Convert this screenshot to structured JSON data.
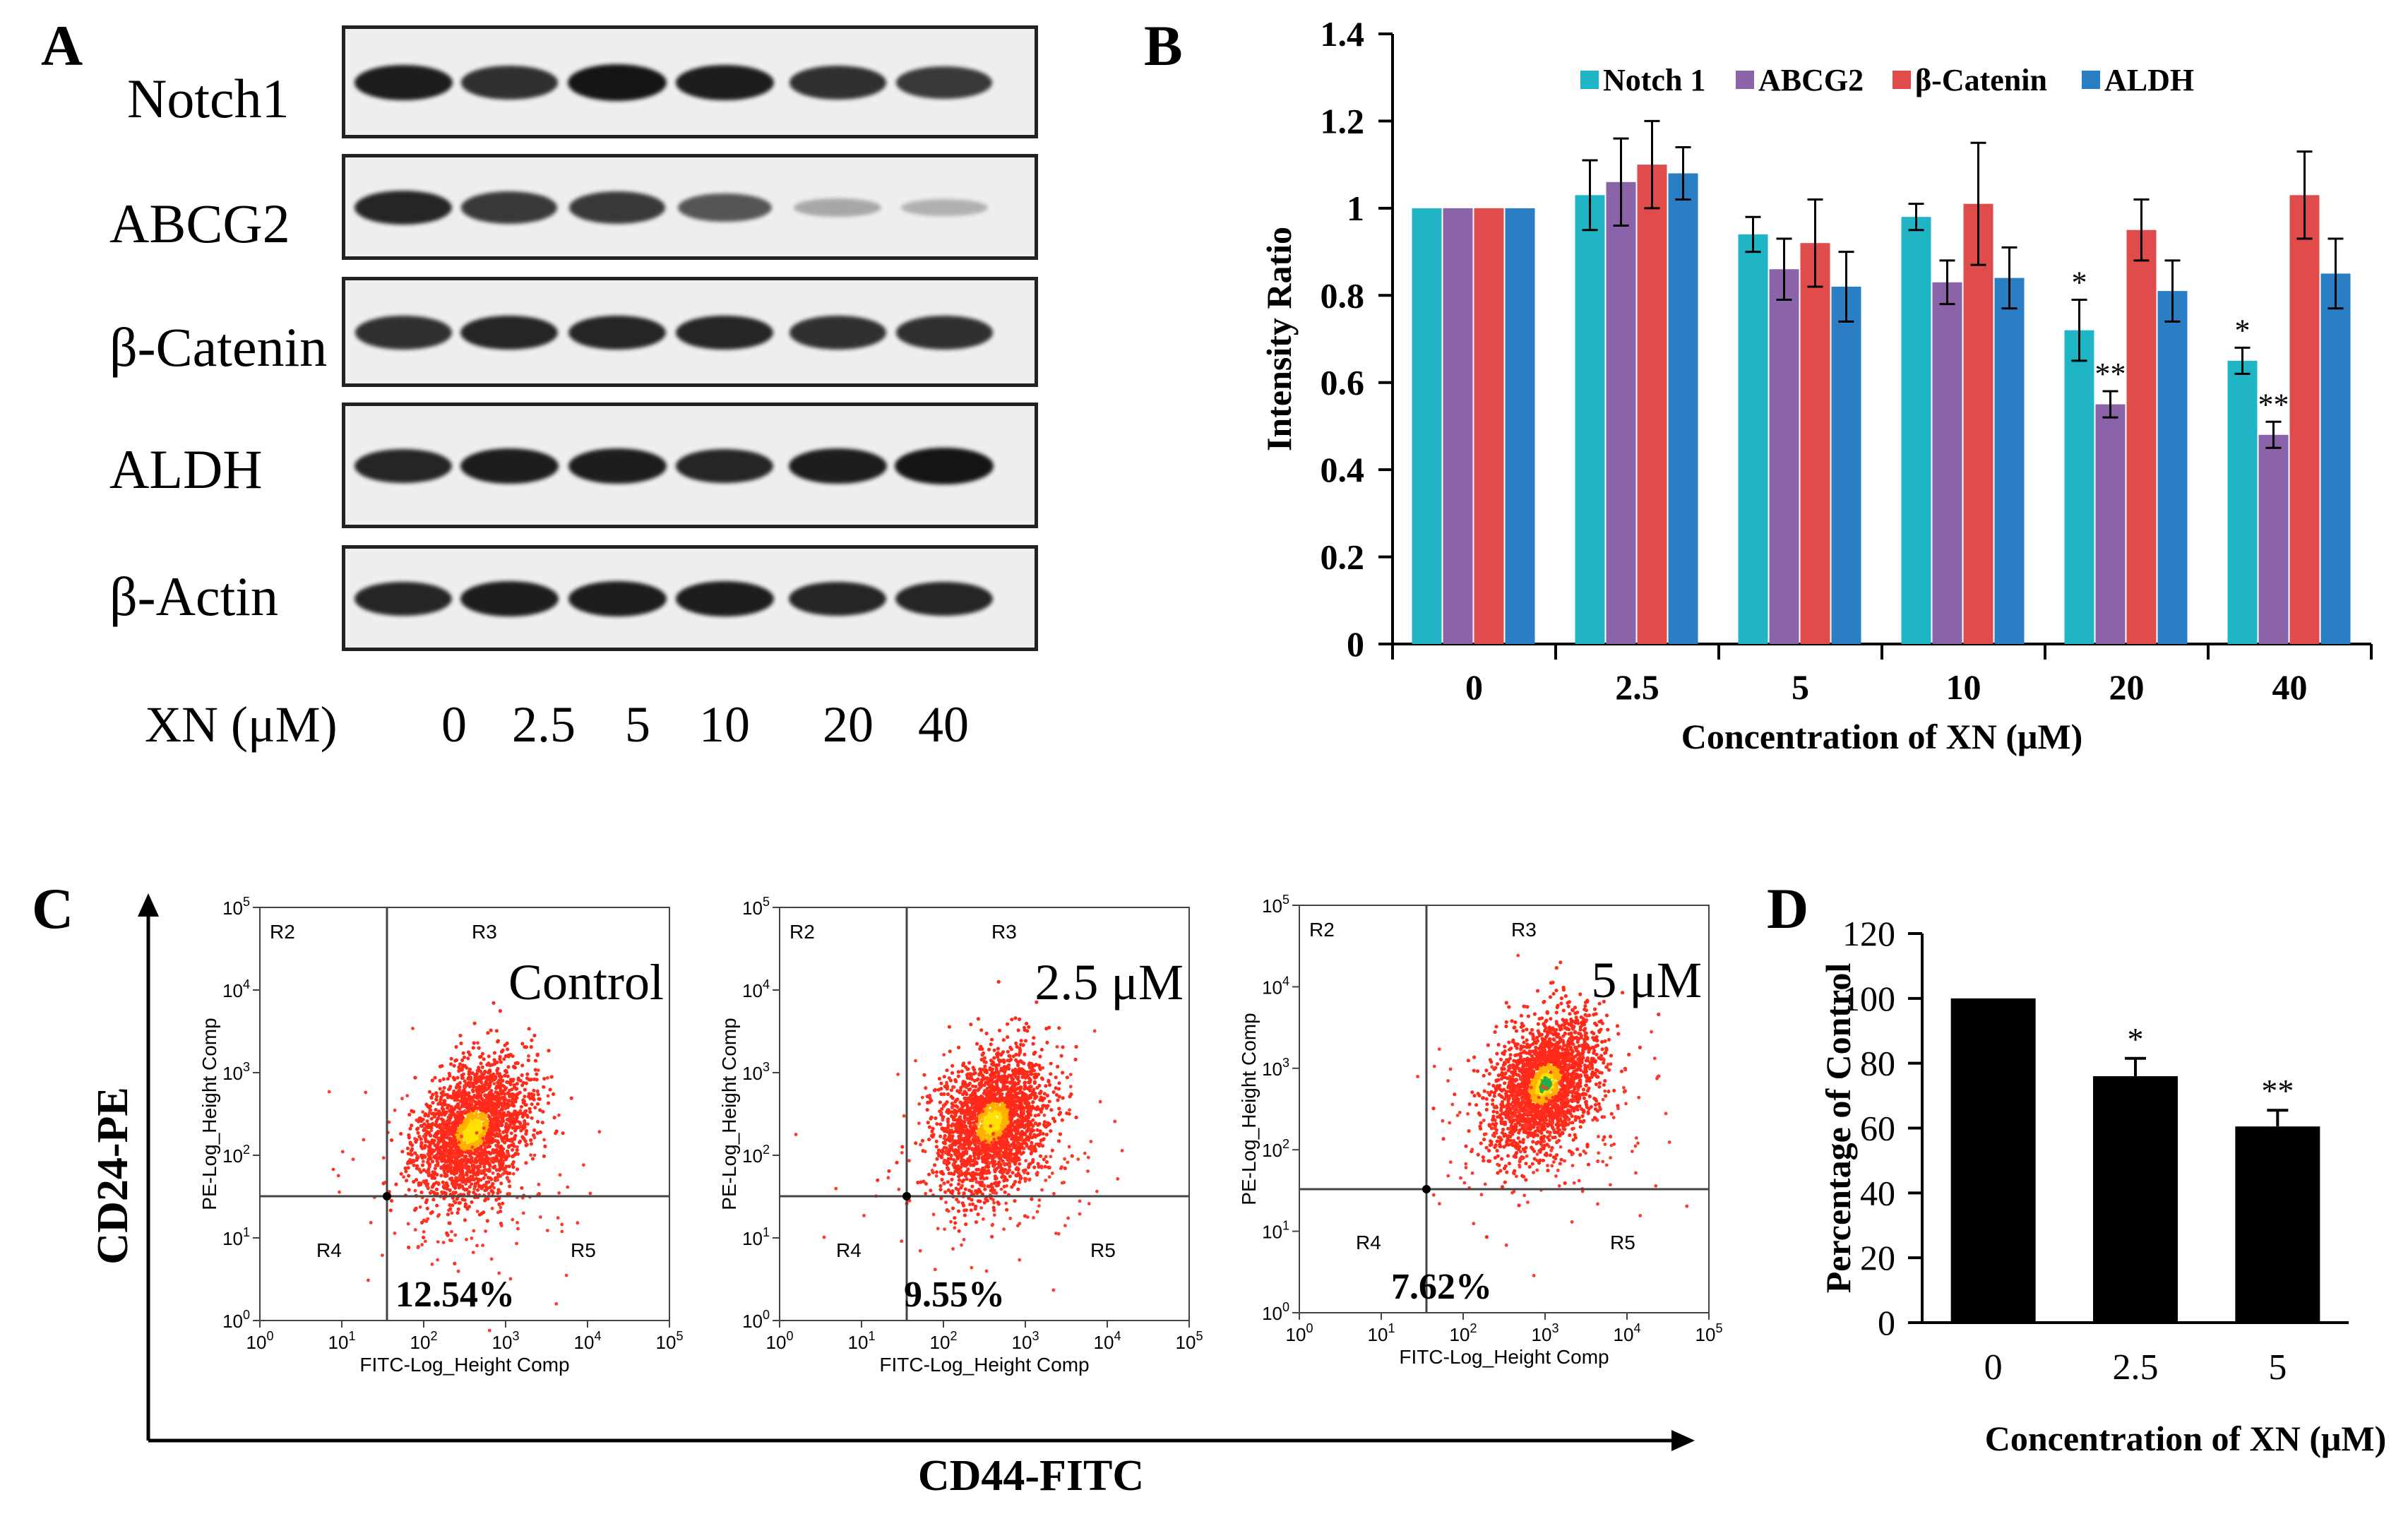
{
  "panels": {
    "a": "A",
    "b": "B",
    "c": "C",
    "d": "D"
  },
  "panel_a": {
    "blots": [
      {
        "name": "notch1",
        "label": "Notch1",
        "intensity": [
          0.95,
          0.85,
          1.0,
          0.95,
          0.85,
          0.8
        ]
      },
      {
        "name": "abcg2",
        "label": "ABCG2",
        "intensity": [
          0.9,
          0.8,
          0.8,
          0.65,
          0.2,
          0.15
        ]
      },
      {
        "name": "beta-catenin",
        "label": "β-Catenin",
        "intensity": [
          0.85,
          0.9,
          0.9,
          0.9,
          0.85,
          0.85
        ]
      },
      {
        "name": "aldh",
        "label": "ALDH",
        "intensity": [
          0.9,
          0.95,
          0.95,
          0.9,
          0.95,
          1.0
        ]
      },
      {
        "name": "beta-actin",
        "label": "β-Actin",
        "intensity": [
          0.9,
          0.95,
          0.95,
          0.95,
          0.9,
          0.9
        ]
      }
    ],
    "xn_label": "XN (μM)",
    "lanes": [
      "0",
      "2.5",
      "5",
      "10",
      "20",
      "40"
    ]
  },
  "chart_data": [
    {
      "panel": "B",
      "type": "bar",
      "categories": [
        "0",
        "2.5",
        "5",
        "10",
        "20",
        "40"
      ],
      "series": [
        {
          "name": "Notch 1",
          "color": "#1fb5c4",
          "values": [
            1.0,
            1.03,
            0.94,
            0.98,
            0.72,
            0.65
          ],
          "errors": [
            0,
            0.08,
            0.04,
            0.03,
            0.07,
            0.03
          ],
          "annotations": [
            "",
            "",
            "",
            "",
            "*",
            "*"
          ]
        },
        {
          "name": "ABCG2",
          "color": "#8b63a8",
          "values": [
            1.0,
            1.06,
            0.86,
            0.83,
            0.55,
            0.48
          ],
          "errors": [
            0,
            0.1,
            0.07,
            0.05,
            0.03,
            0.03
          ],
          "annotations": [
            "",
            "",
            "",
            "",
            "**",
            "**"
          ]
        },
        {
          "name": "β-Catenin",
          "color": "#e04b4b",
          "values": [
            1.0,
            1.1,
            0.92,
            1.01,
            0.95,
            1.03
          ],
          "errors": [
            0,
            0.1,
            0.1,
            0.14,
            0.07,
            0.1
          ],
          "annotations": [
            "",
            "",
            "",
            "",
            "",
            ""
          ]
        },
        {
          "name": "ALDH",
          "color": "#2a7ec4",
          "values": [
            1.0,
            1.08,
            0.82,
            0.84,
            0.81,
            0.85
          ],
          "errors": [
            0,
            0.06,
            0.08,
            0.07,
            0.07,
            0.08
          ],
          "annotations": [
            "",
            "",
            "",
            "",
            "",
            ""
          ]
        }
      ],
      "ylim": [
        0,
        1.4
      ],
      "yticks": [
        "0",
        "0.2",
        "0.4",
        "0.6",
        "0.8",
        "1",
        "1.2",
        "1.4"
      ],
      "xlabel": "Concentration of XN (μM)",
      "ylabel": "Intensity  Ratio",
      "legend": "top"
    },
    {
      "panel": "C",
      "type": "scatter",
      "y_axis_label": "CD24-PE",
      "x_axis_label": "CD44-FITC",
      "plots": [
        {
          "condition": "Control",
          "percent": "12.54%",
          "center_log": [
            2.6,
            2.3
          ]
        },
        {
          "condition": "2.5 μM",
          "percent": "9.55%",
          "center_log": [
            2.6,
            2.4
          ]
        },
        {
          "condition": "5 μM",
          "percent": "7.62%",
          "center_log": [
            3.0,
            2.8
          ]
        }
      ],
      "x_tick_exponents": [
        "0",
        "1",
        "2",
        "3",
        "4",
        "5"
      ],
      "y_tick_exponents": [
        "0",
        "1",
        "2",
        "3",
        "4",
        "5"
      ],
      "tick_base": "10",
      "xlabel": "FITC-Log_Height Comp",
      "ylabel": "PE-Log_Height Comp",
      "regions": [
        "R2",
        "R3",
        "R4",
        "R5"
      ]
    },
    {
      "panel": "D",
      "type": "bar",
      "categories": [
        "0",
        "2.5",
        "5"
      ],
      "values": [
        100,
        76,
        60.5
      ],
      "errors": [
        0,
        5.5,
        5
      ],
      "annotations": [
        "",
        "*",
        "**"
      ],
      "ylim": [
        0,
        120
      ],
      "yticks": [
        "0",
        "20",
        "40",
        "60",
        "80",
        "100",
        "120"
      ],
      "xlabel": "Concentration of XN (μM)",
      "ylabel": "Percentage of Control",
      "color": "#000000"
    }
  ]
}
